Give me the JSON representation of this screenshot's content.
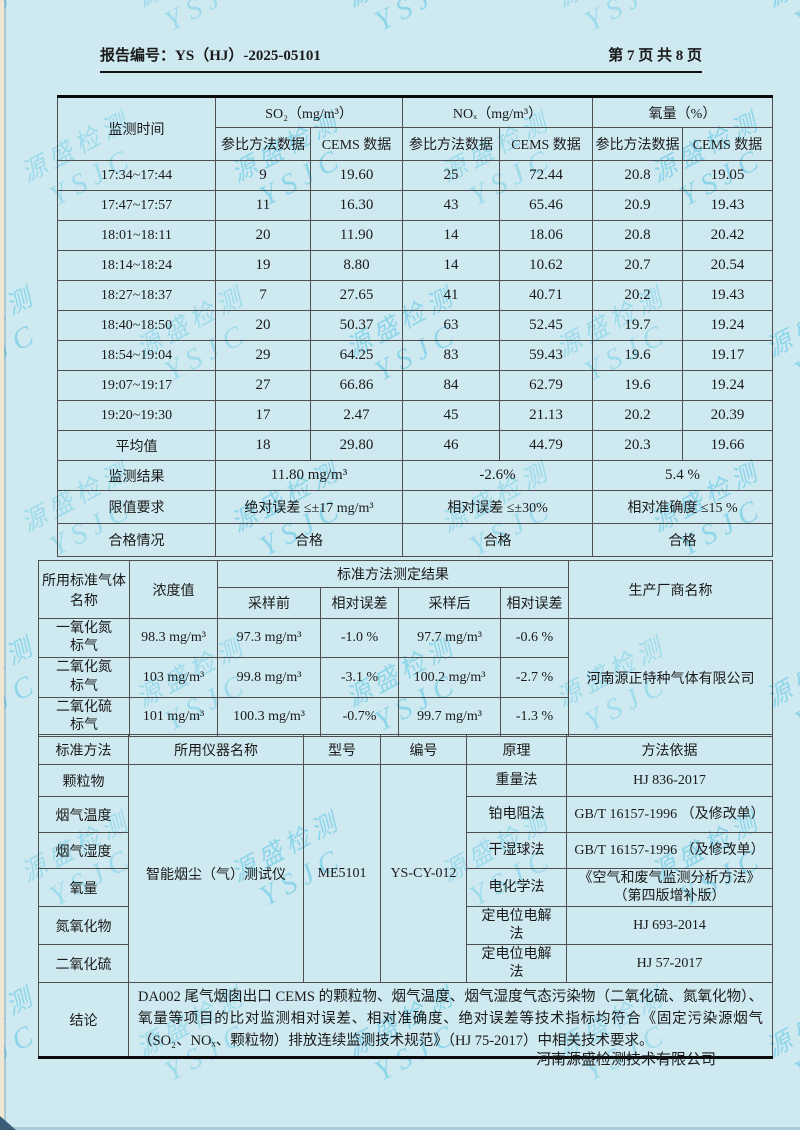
{
  "header": {
    "report_no_label": "报告编号：",
    "report_no": "YS（HJ）-2025-05101",
    "page_info": "第 7 页 共 8 页"
  },
  "watermark": {
    "line1": "源盛检测",
    "line2": "YSJC"
  },
  "table1": {
    "time_header": "监测时间",
    "group_so2": "SO₂（mg/m³）",
    "group_nox": "NOₓ（mg/m³）",
    "group_o2": "氧量（%）",
    "subheader_ref": "参比方法数据",
    "subheader_cems": "CEMS 数据",
    "rows": [
      {
        "time": "17:34~17:44",
        "values": [
          "9",
          "19.60",
          "25",
          "72.44",
          "20.8",
          "19.05"
        ]
      },
      {
        "time": "17:47~17:57",
        "values": [
          "11",
          "16.30",
          "43",
          "65.46",
          "20.9",
          "19.43"
        ]
      },
      {
        "time": "18:01~18:11",
        "values": [
          "20",
          "11.90",
          "14",
          "18.06",
          "20.8",
          "20.42"
        ]
      },
      {
        "time": "18:14~18:24",
        "values": [
          "19",
          "8.80",
          "14",
          "10.62",
          "20.7",
          "20.54"
        ]
      },
      {
        "time": "18:27~18:37",
        "values": [
          "7",
          "27.65",
          "41",
          "40.71",
          "20.2",
          "19.43"
        ]
      },
      {
        "time": "18:40~18:50",
        "values": [
          "20",
          "50.37",
          "63",
          "52.45",
          "19.7",
          "19.24"
        ]
      },
      {
        "time": "18:54~19:04",
        "values": [
          "29",
          "64.25",
          "83",
          "59.43",
          "19.6",
          "19.17"
        ]
      },
      {
        "time": "19:07~19:17",
        "values": [
          "27",
          "66.86",
          "84",
          "62.79",
          "19.6",
          "19.24"
        ]
      },
      {
        "time": "19:20~19:30",
        "values": [
          "17",
          "2.47",
          "45",
          "21.13",
          "20.2",
          "20.39"
        ]
      },
      {
        "time": "平均值",
        "values": [
          "18",
          "29.80",
          "46",
          "44.79",
          "20.3",
          "19.66"
        ]
      }
    ],
    "result_row": {
      "label": "监测结果",
      "values": [
        "11.80 mg/m³",
        "-2.6%",
        "5.4 %"
      ]
    },
    "limit_row": {
      "label": "限值要求",
      "values": [
        "绝对误差 ≤±17 mg/m³",
        "相对误差 ≤±30%",
        "相对准确度 ≤15 %"
      ]
    },
    "pass_row": {
      "label": "合格情况",
      "values": [
        "合格",
        "合格",
        "合格"
      ]
    }
  },
  "table2": {
    "gas_name_header": "所用标准气体名称",
    "conc_header": "浓度值",
    "method_result_header": "标准方法测定结果",
    "sub_before": "采样前",
    "sub_err1": "相对误差",
    "sub_after": "采样后",
    "sub_err2": "相对误差",
    "manufacturer_header": "生产厂商名称",
    "rows": [
      {
        "name": "一氧化氮标气",
        "conc": "98.3 mg/m³",
        "before": "97.3 mg/m³",
        "err1": "-1.0 %",
        "after": "97.7 mg/m³",
        "err2": "-0.6 %"
      },
      {
        "name": "二氧化氮标气",
        "conc": "103 mg/m³",
        "before": "99.8 mg/m³",
        "err1": "-3.1 %",
        "after": "100.2 mg/m³",
        "err2": "-2.7 %"
      },
      {
        "name": "二氧化硫标气",
        "conc": "101 mg/m³",
        "before": "100.3 mg/m³",
        "err1": "-0.7%",
        "after": "99.7 mg/m³",
        "err2": "-1.3 %"
      }
    ],
    "manufacturer": "河南源正特种气体有限公司"
  },
  "table3": {
    "h_method": "标准方法",
    "h_instrument": "所用仪器名称",
    "h_model": "型号",
    "h_serial": "编号",
    "h_principle": "原理",
    "h_basis": "方法依据",
    "instrument": "智能烟尘（气）测试仪",
    "model": "ME5101",
    "serial": "YS-CY-012",
    "rows": [
      {
        "item": "颗粒物",
        "principle": "重量法",
        "basis": "HJ 836-2017"
      },
      {
        "item": "烟气温度",
        "principle": "铂电阻法",
        "basis": "GB/T 16157-1996 （及修改单）"
      },
      {
        "item": "烟气湿度",
        "principle": "干湿球法",
        "basis": "GB/T 16157-1996 （及修改单）"
      },
      {
        "item": "氧量",
        "principle": "电化学法",
        "basis": "《空气和废气监测分析方法》 （第四版增补版）"
      },
      {
        "item": "氮氧化物",
        "principle": "定电位电解法",
        "basis": "HJ 693-2014"
      },
      {
        "item": "二氧化硫",
        "principle": "定电位电解法",
        "basis": "HJ 57-2017"
      }
    ],
    "conclusion_label": "结论",
    "conclusion_text": "DA002 尾气烟囱出口 CEMS 的颗粒物、烟气温度、烟气湿度气态污染物（二氧化硫、氮氧化物）、氧量等项目的比对监测相对误差、相对准确度、绝对误差等技术指标均符合《固定污染源烟气（SO₂、NOₓ、颗粒物）排放连续监测技术规范》（HJ 75-2017）中相关技术要求。"
  },
  "footer": {
    "company": "河南源盛检测技术有限公司"
  }
}
